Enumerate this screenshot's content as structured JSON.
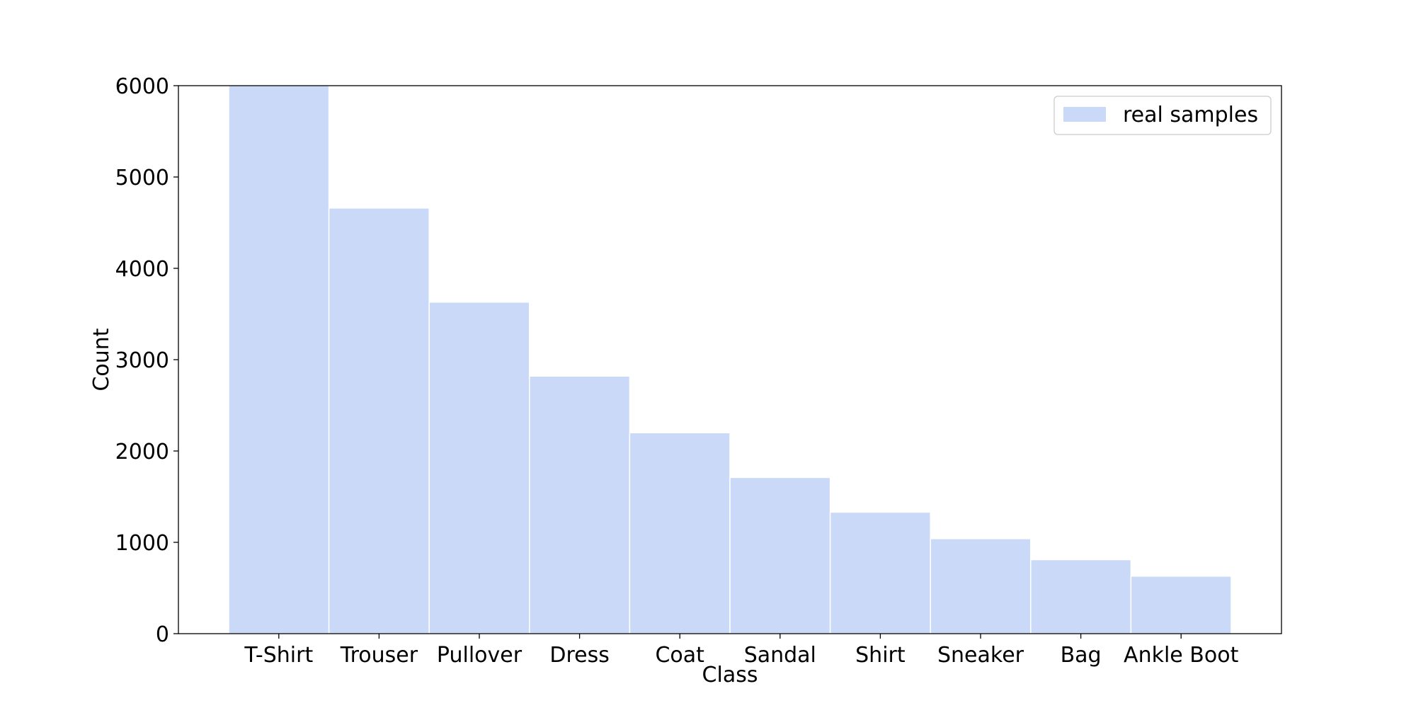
{
  "chart_data": {
    "type": "bar",
    "categories": [
      "T-Shirt",
      "Trouser",
      "Pullover",
      "Dress",
      "Coat",
      "Sandal",
      "Shirt",
      "Sneaker",
      "Bag",
      "Ankle Boot"
    ],
    "series": [
      {
        "name": "real samples",
        "values": [
          6000,
          4660,
          3630,
          2820,
          2200,
          1710,
          1330,
          1040,
          810,
          630
        ],
        "color": "#c9d9f7"
      }
    ],
    "title": "",
    "xlabel": "Class",
    "ylabel": "Count",
    "ylim": [
      0,
      6000
    ],
    "yticks": [
      0,
      1000,
      2000,
      3000,
      4000,
      5000,
      6000
    ],
    "grid": false,
    "legend": "top-right"
  }
}
